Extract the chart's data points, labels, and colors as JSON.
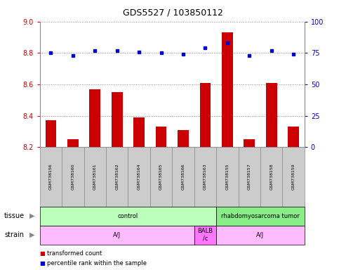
{
  "title": "GDS5527 / 103850112",
  "samples": [
    "GSM738156",
    "GSM738160",
    "GSM738161",
    "GSM738162",
    "GSM738164",
    "GSM738165",
    "GSM738166",
    "GSM738163",
    "GSM738155",
    "GSM738157",
    "GSM738158",
    "GSM738159"
  ],
  "bar_values": [
    8.37,
    8.25,
    8.57,
    8.55,
    8.39,
    8.33,
    8.31,
    8.61,
    8.93,
    8.25,
    8.61,
    8.33
  ],
  "percentile_values": [
    75,
    73,
    77,
    77,
    76,
    75,
    74,
    79,
    83,
    73,
    77,
    74
  ],
  "ylim_left": [
    8.2,
    9.0
  ],
  "ylim_right": [
    0,
    100
  ],
  "yticks_left": [
    8.2,
    8.4,
    8.6,
    8.8,
    9.0
  ],
  "yticks_right": [
    0,
    25,
    50,
    75,
    100
  ],
  "bar_color": "#cc0000",
  "dot_color": "#0000cc",
  "bar_bottom": 8.2,
  "tissue_groups": [
    {
      "label": "control",
      "start": 0,
      "end": 8,
      "color": "#bbffbb"
    },
    {
      "label": "rhabdomyosarcoma tumor",
      "start": 8,
      "end": 12,
      "color": "#88ee88"
    }
  ],
  "strain_groups": [
    {
      "label": "A/J",
      "start": 0,
      "end": 7,
      "color": "#ffbbff"
    },
    {
      "label": "BALB\n/c",
      "start": 7,
      "end": 8,
      "color": "#ff77ff"
    },
    {
      "label": "A/J",
      "start": 8,
      "end": 12,
      "color": "#ffbbff"
    }
  ],
  "legend_red_label": "transformed count",
  "legend_blue_label": "percentile rank within the sample",
  "background_color": "#ffffff",
  "grid_color": "#888888",
  "label_bg": "#cccccc",
  "label_border": "#888888"
}
